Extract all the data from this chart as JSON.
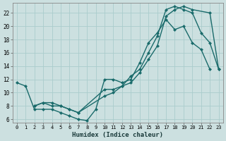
{
  "xlabel": "Humidex (Indice chaleur)",
  "bg_color": "#cce0e0",
  "grid_color": "#aacccc",
  "line_color": "#1a6b6b",
  "xlim": [
    -0.5,
    23.5
  ],
  "ylim": [
    5.5,
    23.5
  ],
  "yticks": [
    6,
    8,
    10,
    12,
    14,
    16,
    18,
    20,
    22
  ],
  "xticks": [
    0,
    1,
    2,
    3,
    4,
    5,
    6,
    7,
    8,
    9,
    10,
    11,
    12,
    13,
    14,
    15,
    16,
    17,
    18,
    19,
    20,
    21,
    22,
    23
  ],
  "lines": [
    {
      "x": [
        0,
        1,
        2,
        3,
        4,
        5,
        6,
        7,
        8,
        9,
        10,
        11,
        12,
        13,
        14,
        15,
        16,
        17,
        18,
        19,
        20,
        21,
        22
      ],
      "y": [
        11.5,
        11.0,
        7.5,
        7.5,
        7.5,
        7.0,
        6.5,
        6.0,
        5.8,
        7.5,
        12.0,
        12.0,
        11.5,
        12.0,
        14.5,
        17.5,
        19.0,
        21.0,
        19.5,
        20.0,
        17.5,
        16.5,
        13.5
      ]
    },
    {
      "x": [
        2,
        3,
        4,
        5,
        6,
        7,
        10,
        11,
        12,
        13,
        14,
        15,
        16,
        17,
        18,
        19,
        20,
        22,
        23
      ],
      "y": [
        8.0,
        8.5,
        8.0,
        8.0,
        7.5,
        7.0,
        10.5,
        10.5,
        11.0,
        11.5,
        13.0,
        15.0,
        17.0,
        21.5,
        22.5,
        23.0,
        22.5,
        22.0,
        13.5
      ]
    },
    {
      "x": [
        2,
        3,
        4,
        5,
        6,
        7,
        10,
        11,
        12,
        13,
        14,
        15,
        16,
        17,
        18,
        19,
        20,
        21,
        22,
        23
      ],
      "y": [
        8.0,
        8.5,
        8.5,
        8.0,
        7.5,
        7.0,
        9.5,
        10.0,
        11.0,
        12.5,
        13.5,
        16.0,
        18.5,
        22.5,
        23.0,
        22.5,
        22.0,
        19.0,
        17.5,
        13.5
      ]
    }
  ],
  "marker_size": 2.5,
  "line_width": 1.0,
  "tick_fontsize": 5.0,
  "xlabel_fontsize": 6.5
}
